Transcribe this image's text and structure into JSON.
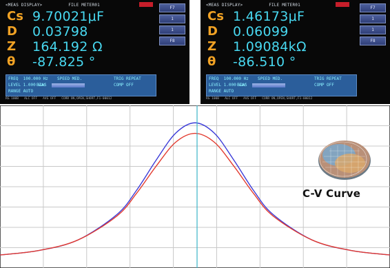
{
  "left_screen": {
    "header_left": "<MEAS DISPLAY>",
    "header_file": "FILE METER01",
    "params": [
      {
        "label": "Cs",
        "value": "9.70021μF"
      },
      {
        "label": "D",
        "value": "0.03798"
      },
      {
        "label": "Z",
        "value": "164.192 Ω"
      },
      {
        "label": "θ",
        "value": "-87.825 °"
      }
    ],
    "softkeys": [
      "F7",
      "1",
      "1",
      "F8"
    ],
    "settings": {
      "freq": "FREQ  100.000 Hz",
      "speed": "SPEED MED.",
      "trig": "TRIG REPEAT",
      "level": "LEVEL 1.000 Vac",
      "bias": "BIAS",
      "comp": "COMP OFF",
      "range": "RANGE AUTO"
    },
    "footer": "RG 100B   ALC OFF   AVG OFF   CORR ON,OPEN,SHORT,F1-00012"
  },
  "right_screen": {
    "header_left": "<MEAS DISPLAY>",
    "header_file": "FILE METER01",
    "params": [
      {
        "label": "Cs",
        "value": "1.46173μF"
      },
      {
        "label": "D",
        "value": "0.06099"
      },
      {
        "label": "Z",
        "value": "1.09084kΩ"
      },
      {
        "label": "θ",
        "value": "-86.510 °"
      }
    ],
    "softkeys": [
      "F7",
      "1",
      "1",
      "F8"
    ],
    "settings": {
      "freq": "FREQ  100.000 Hz",
      "speed": "SPEED MED.",
      "trig": "TRIG REPEAT",
      "level": "LEVEL 1.000 Vac",
      "bias": "BIAS",
      "comp": "COMP OFF",
      "range": "RANGE AUTO"
    },
    "footer": "RG 100B   ALC OFF   AVG OFF   CORR ON,OPEN,SHORT,F1-00012"
  },
  "chart_data": {
    "type": "line",
    "title": "C-V Curve",
    "x": [
      -1.0,
      -0.8,
      -0.6,
      -0.4,
      -0.3,
      -0.2,
      -0.1,
      0.0,
      0.1,
      0.2,
      0.3,
      0.4,
      0.6,
      0.8,
      1.0
    ],
    "series": [
      {
        "color": "#3b3bd8",
        "values": [
          0.05,
          0.08,
          0.15,
          0.32,
          0.48,
          0.68,
          0.86,
          0.93,
          0.86,
          0.68,
          0.48,
          0.32,
          0.15,
          0.08,
          0.05
        ]
      },
      {
        "color": "#e23b30",
        "values": [
          0.05,
          0.08,
          0.15,
          0.31,
          0.46,
          0.64,
          0.8,
          0.86,
          0.8,
          0.64,
          0.46,
          0.31,
          0.15,
          0.08,
          0.05
        ]
      }
    ],
    "cursor_x": 0.0,
    "cursor_color": "#39b3c9",
    "grid": true,
    "xlim": [
      -1.0,
      1.0
    ],
    "ylim": [
      0,
      1
    ]
  }
}
